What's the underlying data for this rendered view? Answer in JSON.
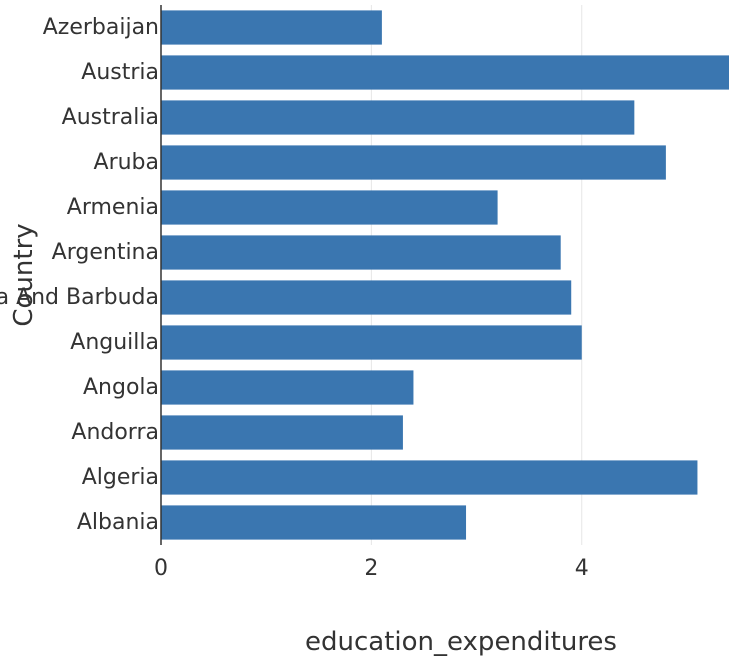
{
  "chart_data": {
    "type": "bar",
    "orientation": "horizontal",
    "categories": [
      "Azerbaijan",
      "Austria",
      "Australia",
      "Aruba",
      "Armenia",
      "Argentina",
      "Antigua And Barbuda",
      "Anguilla",
      "Angola",
      "Andorra",
      "Algeria",
      "Albania"
    ],
    "values": [
      2.1,
      5.5,
      4.5,
      4.8,
      3.2,
      3.8,
      3.9,
      4.0,
      2.4,
      2.3,
      5.1,
      2.9
    ],
    "xlabel": "education_expenditures",
    "ylabel": "Country",
    "xlim": [
      0,
      5.4
    ],
    "xticks": [
      0,
      2,
      4
    ],
    "grid": true,
    "bar_color": "#3a76b0"
  }
}
